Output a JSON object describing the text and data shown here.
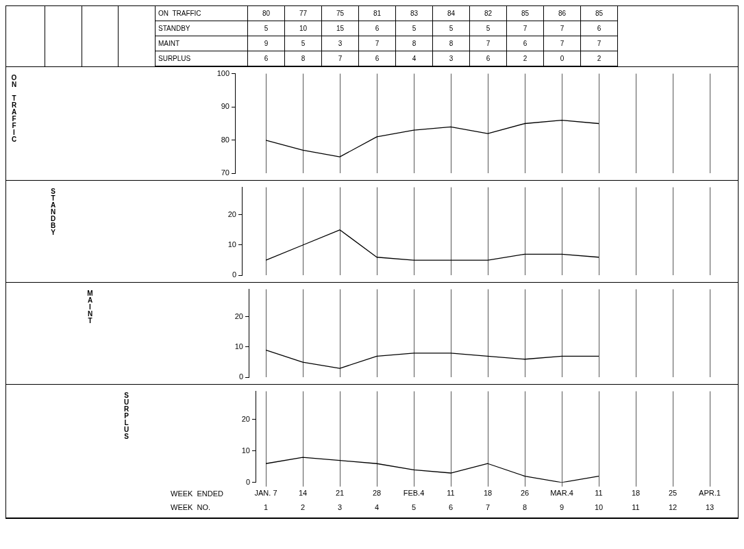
{
  "chart_data": [
    {
      "type": "line",
      "ylabel": "ON TRAFFIC",
      "categories": [
        null,
        null,
        null,
        null,
        null,
        null,
        null,
        null,
        null,
        null
      ],
      "series": [
        {
          "name": "ON  TRAFFIC",
          "color": "#000000",
          "values": [
            80,
            77,
            75,
            81,
            83,
            84,
            82,
            85,
            86,
            85
          ]
        }
      ],
      "ylim": [
        70,
        100
      ],
      "yticks": [
        70,
        80,
        90,
        100
      ],
      "grid": "x",
      "data_labels": true,
      "tick_labels": "y"
    },
    {
      "type": "line",
      "ylabel": "STANDBY",
      "categories": [
        null,
        null,
        null,
        null,
        null,
        null,
        null,
        null,
        null,
        null
      ],
      "series": [
        {
          "name": "STANDBY",
          "color": "#000000",
          "values": [
            5,
            10,
            15,
            6,
            5,
            5,
            5,
            7,
            7,
            6
          ]
        }
      ],
      "ylim": [
        0,
        29
      ],
      "yticks": [
        0,
        10,
        20
      ],
      "grid": "x",
      "data_labels": true,
      "tick_labels": "y"
    },
    {
      "type": "line",
      "ylabel": "MAINT",
      "categories": [
        null,
        null,
        null,
        null,
        null,
        null,
        null,
        null,
        null,
        null
      ],
      "series": [
        {
          "name": "MAINT",
          "color": "#000000",
          "values": [
            9,
            5,
            3,
            7,
            8,
            8,
            7,
            6,
            7,
            7
          ]
        }
      ],
      "ylim": [
        0,
        29
      ],
      "yticks": [
        0,
        10,
        20
      ],
      "grid": "x",
      "data_labels": true,
      "tick_labels": "y"
    },
    {
      "type": "line",
      "ylabel": "SURPLUS",
      "categories": [
        "JAN. 7",
        "14",
        "21",
        "28",
        "FEB.4",
        "11",
        "18",
        "26",
        "MAR.4",
        "11",
        "18",
        "25",
        "APR.1"
      ],
      "series": [
        {
          "name": "SURPLUS",
          "color": "#000000",
          "values": [
            6,
            8,
            7,
            6,
            4,
            3,
            6,
            2,
            0,
            2,
            null,
            null,
            null
          ]
        }
      ],
      "ylim": [
        0,
        29
      ],
      "yticks": [
        0,
        10,
        20
      ],
      "grid": "x",
      "data_labels": true,
      "xlabel": "WEEK  ENDED",
      "x2label": "WEEK  NO.",
      "x2lim": [
        1,
        13
      ],
      "x2ticks": [
        1,
        2,
        3,
        4,
        5,
        6,
        7,
        8,
        9,
        10,
        11,
        12,
        13
      ]
    }
  ]
}
